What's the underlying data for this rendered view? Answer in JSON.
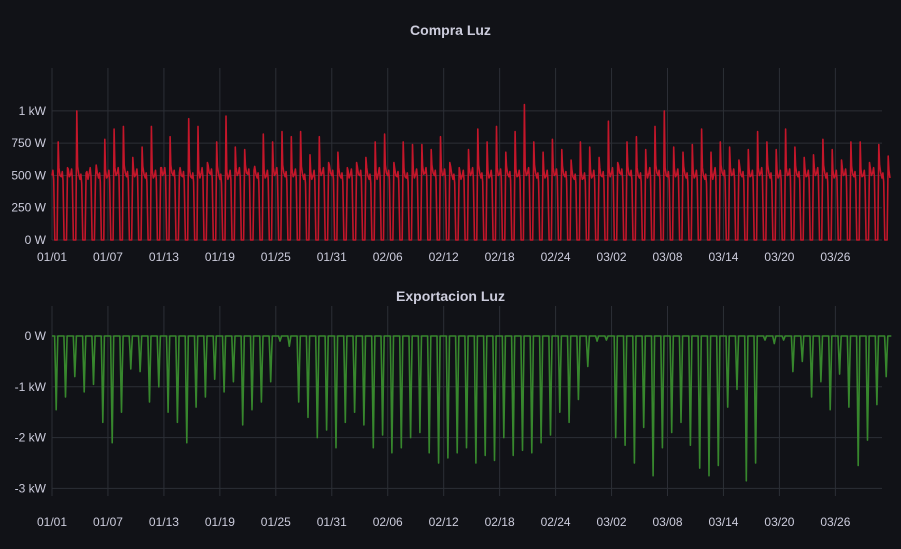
{
  "chart_data": [
    {
      "type": "line",
      "title": "Compra Luz",
      "xlabel": "",
      "ylabel": "",
      "x_tick_labels": [
        "01/01",
        "01/07",
        "01/13",
        "01/19",
        "01/25",
        "01/31",
        "02/06",
        "02/12",
        "02/18",
        "02/24",
        "03/02",
        "03/08",
        "03/14",
        "03/20",
        "03/26"
      ],
      "y_tick_labels": [
        "0 W",
        "250 W",
        "500 W",
        "750 W",
        "1 kW"
      ],
      "y_tick_values": [
        0,
        250,
        500,
        750,
        1000
      ],
      "ylim": [
        0,
        1100
      ],
      "x_range_days": [
        0,
        89
      ],
      "grid": true,
      "color": "#c4162a",
      "series": [
        {
          "daily_peak_w": [
            760,
            560,
            1000,
            520,
            480,
            780,
            860,
            880,
            640,
            720,
            880,
            560,
            800,
            520,
            940,
            880,
            600,
            760,
            960,
            720,
            700,
            540,
            820,
            760,
            840,
            800,
            840,
            660,
            800,
            600,
            680,
            560,
            600,
            640,
            760,
            820,
            600,
            760,
            740,
            740,
            700,
            800,
            600,
            560,
            700,
            860,
            760,
            880,
            680,
            840,
            1050,
            760,
            680,
            780,
            700,
            620,
            760,
            720,
            640,
            920,
            600,
            760,
            800,
            700,
            880,
            1000,
            720,
            680,
            740,
            860,
            680,
            760,
            720,
            620,
            700,
            840,
            760,
            700,
            860,
            720,
            640,
            660,
            780,
            700,
            620,
            760,
            760,
            600,
            740,
            650
          ],
          "daily_base_w": [
            500,
            490,
            510,
            470,
            520,
            480,
            500,
            520,
            490,
            510,
            480,
            500,
            520,
            500,
            490,
            480,
            520,
            510,
            470,
            500,
            520,
            510,
            480,
            500,
            520,
            490,
            510,
            470,
            500,
            520,
            500,
            480,
            510,
            500,
            470,
            520,
            500,
            490,
            480,
            510,
            520,
            500,
            510,
            470,
            500,
            520,
            480,
            500,
            510,
            490,
            500,
            520,
            480,
            500,
            510,
            490,
            470,
            480,
            500,
            490,
            520,
            510,
            500,
            480,
            520,
            500,
            490,
            510,
            480,
            500,
            470,
            520,
            500,
            510,
            490,
            500,
            520,
            480,
            500,
            510,
            490,
            500,
            520,
            480,
            500,
            510,
            490,
            500,
            520,
            480
          ]
        }
      ]
    },
    {
      "type": "line",
      "title": "Exportacion Luz",
      "xlabel": "",
      "ylabel": "",
      "x_tick_labels": [
        "01/01",
        "01/07",
        "01/13",
        "01/19",
        "01/25",
        "01/31",
        "02/06",
        "02/12",
        "02/18",
        "02/24",
        "03/02",
        "03/08",
        "03/14",
        "03/20",
        "03/26"
      ],
      "y_tick_labels": [
        "0 W",
        "-1 kW",
        "-2 kW",
        "-3 kW"
      ],
      "y_tick_values": [
        0,
        -1000,
        -2000,
        -3000
      ],
      "ylim": [
        -3150,
        0
      ],
      "x_range_days": [
        0,
        89
      ],
      "grid": true,
      "color": "#37872d",
      "series": [
        {
          "daily_min_w": [
            -1450,
            -1200,
            -800,
            -1100,
            -950,
            -1700,
            -2100,
            -1500,
            -650,
            -700,
            -1300,
            -1000,
            -1500,
            -1700,
            -2100,
            -1400,
            -1200,
            -850,
            -1100,
            -900,
            -1750,
            -1450,
            -1300,
            -900,
            -100,
            -200,
            -1300,
            -1600,
            -2000,
            -1850,
            -2200,
            -1700,
            -1500,
            -1750,
            -2200,
            -1950,
            -2300,
            -2200,
            -2000,
            -1900,
            -2300,
            -2500,
            -2400,
            -2300,
            -2200,
            -2500,
            -2350,
            -2450,
            -2000,
            -2350,
            -2250,
            -2300,
            -2100,
            -1950,
            -1500,
            -1700,
            -1250,
            -600,
            -100,
            -80,
            -2000,
            -2150,
            -2500,
            -1800,
            -2750,
            -2200,
            -1900,
            -1700,
            -2150,
            -2600,
            -2750,
            -2550,
            -1400,
            -1050,
            -2850,
            -2500,
            -80,
            -150,
            -80,
            -700,
            -500,
            -1200,
            -900,
            -1450,
            -750,
            -1400,
            -2550,
            -2050,
            -1350,
            -800
          ]
        }
      ]
    }
  ]
}
